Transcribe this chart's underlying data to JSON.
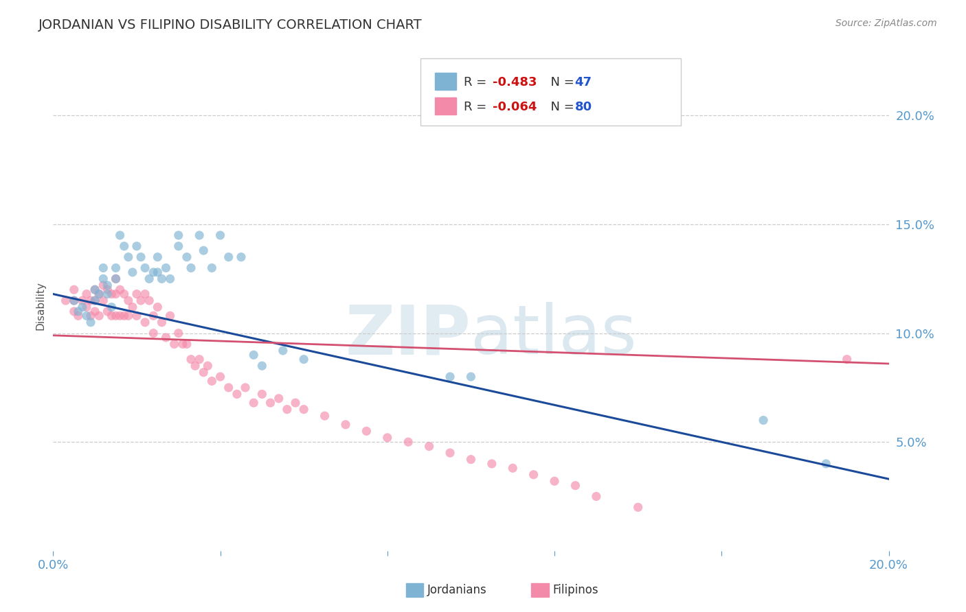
{
  "title": "JORDANIAN VS FILIPINO DISABILITY CORRELATION CHART",
  "source": "Source: ZipAtlas.com",
  "ylabel": "Disability",
  "y_tick_labels": [
    "20.0%",
    "15.0%",
    "10.0%",
    "5.0%"
  ],
  "y_tick_values": [
    0.2,
    0.15,
    0.1,
    0.05
  ],
  "xlim": [
    0.0,
    0.2
  ],
  "ylim": [
    0.0,
    0.225
  ],
  "legend_label1": "Jordanians",
  "legend_label2": "Filipinos",
  "blue_scatter_x": [
    0.005,
    0.006,
    0.007,
    0.008,
    0.009,
    0.01,
    0.01,
    0.011,
    0.012,
    0.012,
    0.013,
    0.013,
    0.014,
    0.015,
    0.015,
    0.016,
    0.017,
    0.018,
    0.019,
    0.02,
    0.021,
    0.022,
    0.023,
    0.024,
    0.025,
    0.025,
    0.026,
    0.027,
    0.028,
    0.03,
    0.03,
    0.032,
    0.033,
    0.035,
    0.036,
    0.038,
    0.04,
    0.042,
    0.045,
    0.048,
    0.05,
    0.055,
    0.06,
    0.095,
    0.1,
    0.17,
    0.185
  ],
  "blue_scatter_y": [
    0.115,
    0.11,
    0.112,
    0.108,
    0.105,
    0.12,
    0.115,
    0.118,
    0.13,
    0.125,
    0.122,
    0.118,
    0.112,
    0.13,
    0.125,
    0.145,
    0.14,
    0.135,
    0.128,
    0.14,
    0.135,
    0.13,
    0.125,
    0.128,
    0.135,
    0.128,
    0.125,
    0.13,
    0.125,
    0.145,
    0.14,
    0.135,
    0.13,
    0.145,
    0.138,
    0.13,
    0.145,
    0.135,
    0.135,
    0.09,
    0.085,
    0.092,
    0.088,
    0.08,
    0.08,
    0.06,
    0.04
  ],
  "pink_scatter_x": [
    0.003,
    0.005,
    0.005,
    0.005,
    0.006,
    0.007,
    0.008,
    0.008,
    0.009,
    0.009,
    0.01,
    0.01,
    0.01,
    0.011,
    0.011,
    0.012,
    0.012,
    0.013,
    0.013,
    0.014,
    0.014,
    0.015,
    0.015,
    0.015,
    0.016,
    0.016,
    0.017,
    0.017,
    0.018,
    0.018,
    0.019,
    0.02,
    0.02,
    0.021,
    0.022,
    0.022,
    0.023,
    0.024,
    0.024,
    0.025,
    0.026,
    0.027,
    0.028,
    0.029,
    0.03,
    0.031,
    0.032,
    0.033,
    0.034,
    0.035,
    0.036,
    0.037,
    0.038,
    0.04,
    0.042,
    0.044,
    0.046,
    0.048,
    0.05,
    0.052,
    0.054,
    0.056,
    0.058,
    0.06,
    0.065,
    0.07,
    0.075,
    0.08,
    0.085,
    0.09,
    0.095,
    0.1,
    0.105,
    0.11,
    0.115,
    0.12,
    0.125,
    0.13,
    0.14,
    0.19
  ],
  "pink_scatter_y": [
    0.115,
    0.12,
    0.115,
    0.11,
    0.108,
    0.115,
    0.118,
    0.112,
    0.115,
    0.108,
    0.12,
    0.115,
    0.11,
    0.118,
    0.108,
    0.122,
    0.115,
    0.12,
    0.11,
    0.118,
    0.108,
    0.125,
    0.118,
    0.108,
    0.12,
    0.108,
    0.118,
    0.108,
    0.115,
    0.108,
    0.112,
    0.118,
    0.108,
    0.115,
    0.118,
    0.105,
    0.115,
    0.108,
    0.1,
    0.112,
    0.105,
    0.098,
    0.108,
    0.095,
    0.1,
    0.095,
    0.095,
    0.088,
    0.085,
    0.088,
    0.082,
    0.085,
    0.078,
    0.08,
    0.075,
    0.072,
    0.075,
    0.068,
    0.072,
    0.068,
    0.07,
    0.065,
    0.068,
    0.065,
    0.062,
    0.058,
    0.055,
    0.052,
    0.05,
    0.048,
    0.045,
    0.042,
    0.04,
    0.038,
    0.035,
    0.032,
    0.03,
    0.025,
    0.02,
    0.088
  ],
  "blue_line_x": [
    0.0,
    0.2
  ],
  "blue_line_y": [
    0.118,
    0.033
  ],
  "pink_line_x": [
    0.0,
    0.2
  ],
  "pink_line_y": [
    0.099,
    0.086
  ],
  "background_color": "#ffffff",
  "scatter_blue_color": "#7fb3d3",
  "scatter_pink_color": "#f48aaa",
  "line_blue_color": "#1a4a99",
  "line_pink_color": "#d45070",
  "watermark_color": "#dce8f0",
  "title_color": "#333333",
  "axis_color": "#5599cc",
  "grid_color": "#cccccc",
  "r_text_color": "#cc1111",
  "n_text_color": "#2255cc"
}
